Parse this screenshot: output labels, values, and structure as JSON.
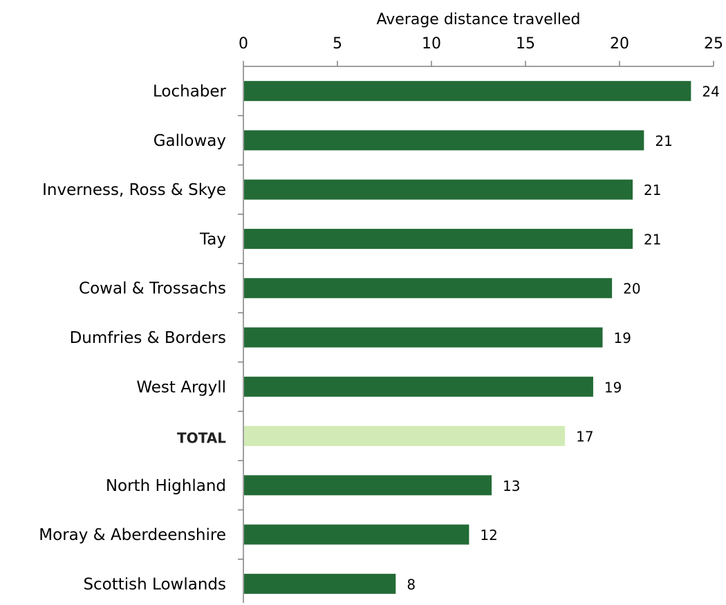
{
  "chart_data": {
    "type": "bar",
    "orientation": "horizontal",
    "xlabel": "Average distance travelled",
    "xlim": [
      0,
      25
    ],
    "x_ticks": [
      0,
      5,
      10,
      15,
      20,
      25
    ],
    "categories": [
      "Lochaber",
      "Galloway",
      "Inverness, Ross & Skye",
      "Tay",
      "Cowal & Trossachs",
      "Dumfries & Borders",
      "West Argyll",
      "TOTAL",
      "North Highland",
      "Moray & Aberdeenshire",
      "Scottish Lowlands"
    ],
    "values": [
      23.8,
      21.3,
      20.7,
      20.7,
      19.6,
      19.1,
      18.6,
      17.1,
      13.2,
      12.0,
      8.1
    ],
    "labels": [
      "24",
      "21",
      "21",
      "21",
      "20",
      "19",
      "19",
      "17",
      "13",
      "12",
      "8"
    ],
    "highlight_category": "TOTAL",
    "colors": {
      "bar": "#236b36",
      "highlight_bar": "#d2ebb6"
    },
    "axis_position": "top",
    "grid": false
  }
}
